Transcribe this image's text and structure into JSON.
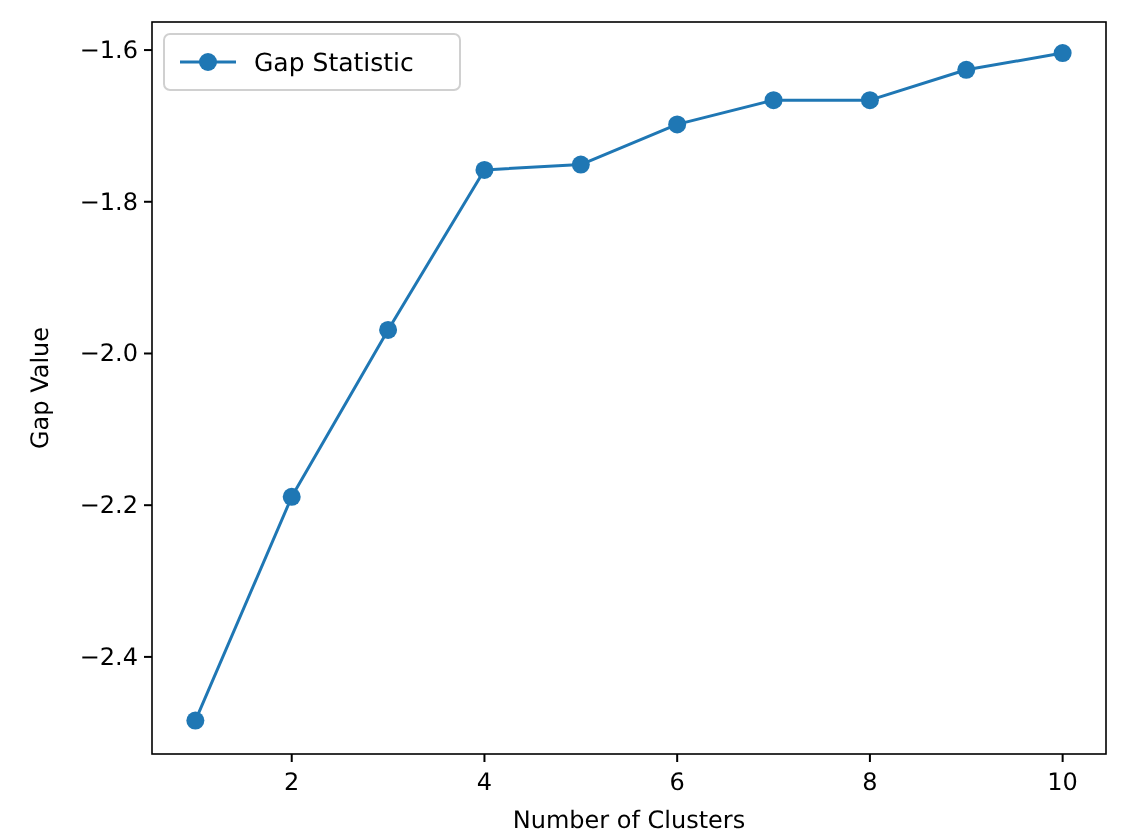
{
  "chart_data": {
    "type": "line",
    "xlabel": "Number of Clusters",
    "ylabel": "Gap Value",
    "x": [
      1,
      2,
      3,
      4,
      5,
      6,
      7,
      8,
      9,
      10
    ],
    "series": [
      {
        "name": "Gap Statistic",
        "color": "#1f77b4",
        "values": [
          -2.484,
          -2.189,
          -1.969,
          -1.758,
          -1.751,
          -1.698,
          -1.666,
          -1.666,
          -1.626,
          -1.604
        ]
      }
    ],
    "xlim": [
      0.55,
      10.45
    ],
    "xticks": [
      2,
      4,
      6,
      8,
      10
    ],
    "ylim": [
      -2.528,
      -1.563
    ],
    "yticks": [
      {
        "value": -2.4,
        "label": "−2.4"
      },
      {
        "value": -2.2,
        "label": "−2.2"
      },
      {
        "value": -2.0,
        "label": "−2.0"
      },
      {
        "value": -1.8,
        "label": "−1.8"
      },
      {
        "value": -1.6,
        "label": "−1.6"
      }
    ],
    "legend": "top left",
    "marker": "circle",
    "line_style": "solid"
  }
}
